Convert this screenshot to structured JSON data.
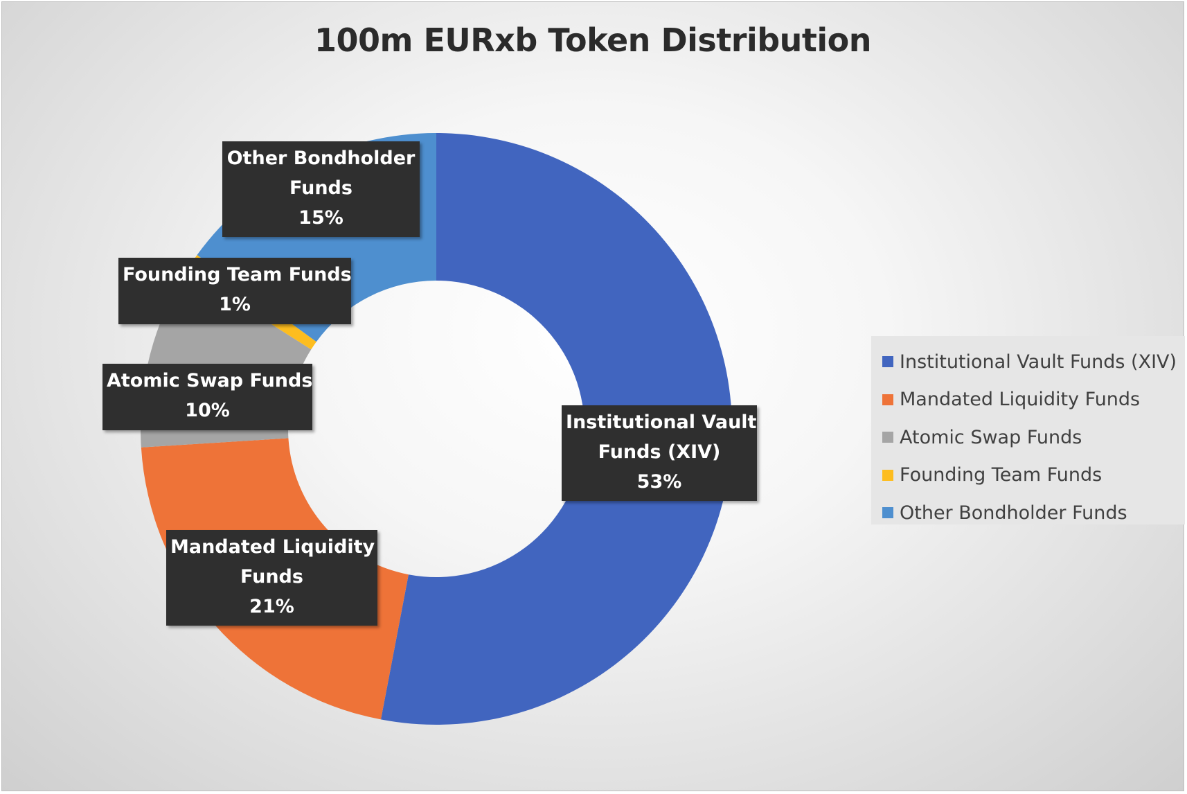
{
  "chart_data": {
    "type": "pie",
    "variant": "donut",
    "title": "100m EURxb Token Distribution",
    "legend_position": "right",
    "slices": [
      {
        "name": "Institutional Vault Funds (XIV)",
        "value": 53,
        "label_lines": [
          "Institutional Vault",
          "Funds (XIV)",
          "53%"
        ],
        "color": "#4165bf"
      },
      {
        "name": "Mandated Liquidity Funds",
        "value": 21,
        "label_lines": [
          "Mandated Liquidity",
          "Funds",
          "21%"
        ],
        "color": "#ee7338"
      },
      {
        "name": "Atomic Swap Funds",
        "value": 10,
        "label_lines": [
          "Atomic Swap Funds",
          "10%"
        ],
        "color": "#a5a5a5"
      },
      {
        "name": "Founding Team Funds",
        "value": 1,
        "label_lines": [
          "Founding Team Funds",
          "1%"
        ],
        "color": "#fdbd1f"
      },
      {
        "name": "Other Bondholder Funds",
        "value": 15,
        "label_lines": [
          "Other Bondholder",
          "Funds",
          "15%"
        ],
        "color": "#4e8fcf"
      }
    ]
  }
}
